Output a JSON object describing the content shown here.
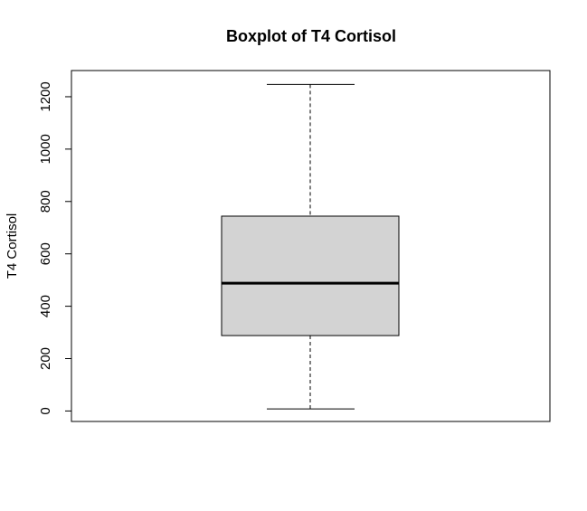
{
  "chart_data": {
    "type": "boxplot",
    "title": "Boxplot of T4 Cortisol",
    "xlabel": "",
    "ylabel": "T4 Cortisol",
    "ylim": [
      -40,
      1300
    ],
    "yticks": [
      0,
      200,
      400,
      600,
      800,
      1000,
      1200
    ],
    "ytick_labels": [
      "0",
      "200",
      "400",
      "600",
      "800",
      "1000",
      "1200"
    ],
    "box": {
      "whisker_low": 8,
      "q1": 288,
      "median": 488,
      "q3": 744,
      "whisker_high": 1247
    },
    "box_fill": "#d3d3d3",
    "line_color": "#000000",
    "grid": false,
    "legend": "none"
  }
}
